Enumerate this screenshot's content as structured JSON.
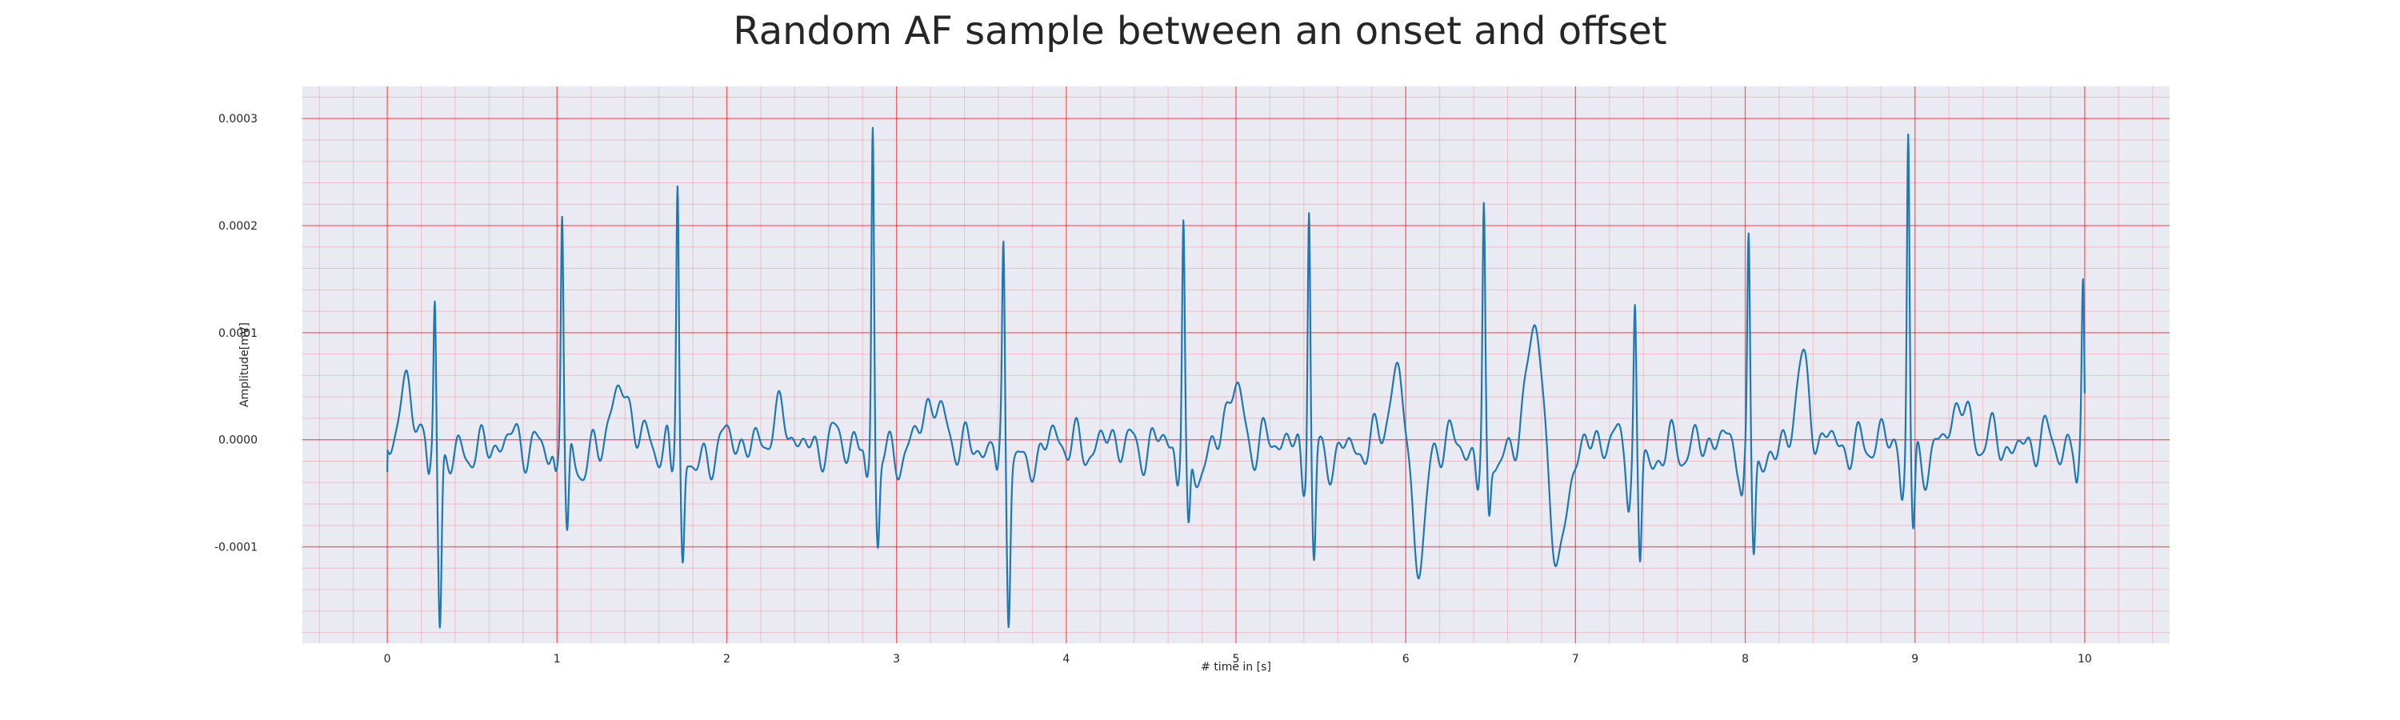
{
  "chart_data": {
    "type": "line",
    "title": "Random AF sample between an onset and offset",
    "xlabel": "# time in [s]",
    "ylabel": "Amplitude[mV]",
    "xlim": [
      -0.5,
      10.5
    ],
    "ylim": [
      -0.00019,
      0.00033
    ],
    "xticks": [
      0,
      1,
      2,
      3,
      4,
      5,
      6,
      7,
      8,
      9,
      10
    ],
    "xtick_labels": [
      "0",
      "1",
      "2",
      "3",
      "4",
      "5",
      "6",
      "7",
      "8",
      "9",
      "10"
    ],
    "yticks": [
      -0.0001,
      0.0,
      0.0001,
      0.0002,
      0.0003
    ],
    "ytick_labels": [
      "-0.0001",
      "0.0000",
      "0.0001",
      "0.0002",
      "0.0003"
    ],
    "grid": {
      "major": true,
      "minor": true,
      "color": "#ff0000"
    },
    "background_color": "#eaeaf2",
    "line_color": "#1f77b4",
    "beats": [
      0.28,
      1.03,
      1.71,
      2.86,
      3.63,
      4.69,
      5.43,
      6.46,
      7.35,
      8.02,
      8.96,
      9.99
    ],
    "beat_peaks": [
      0.00014,
      0.000215,
      0.000238,
      0.00031,
      0.000177,
      0.000206,
      0.00024,
      0.000208,
      0.000127,
      0.000184,
      0.000293,
      0.000155
    ],
    "beat_troughs": [
      -0.000161,
      -9.4e-05,
      -0.00011,
      -8.3e-05,
      -0.000148,
      -8.8e-05,
      -0.000108,
      -6.7e-05,
      -0.000108,
      -0.0001,
      -8.3e-05,
      -6.3e-05
    ],
    "waves": [
      {
        "t": 0.13,
        "a": 4.5e-05,
        "w": 0.05
      },
      {
        "t": 1.38,
        "a": 4.2e-05,
        "w": 0.07
      },
      {
        "t": 2.3,
        "a": 2e-05,
        "w": 0.06
      },
      {
        "t": 3.2,
        "a": 4.5e-05,
        "w": 0.05
      },
      {
        "t": 4.99,
        "a": 5e-05,
        "w": 0.05
      },
      {
        "t": 5.95,
        "a": 5.8e-05,
        "w": 0.05
      },
      {
        "t": 6.08,
        "a": -0.00011,
        "w": 0.04
      },
      {
        "t": 6.75,
        "a": 0.000105,
        "w": 0.05
      },
      {
        "t": 6.9,
        "a": -0.000128,
        "w": 0.04
      },
      {
        "t": 8.33,
        "a": 7.8e-05,
        "w": 0.04
      },
      {
        "t": 9.26,
        "a": 4.2e-05,
        "w": 0.05
      }
    ],
    "duration": [
      0,
      10
    ]
  }
}
